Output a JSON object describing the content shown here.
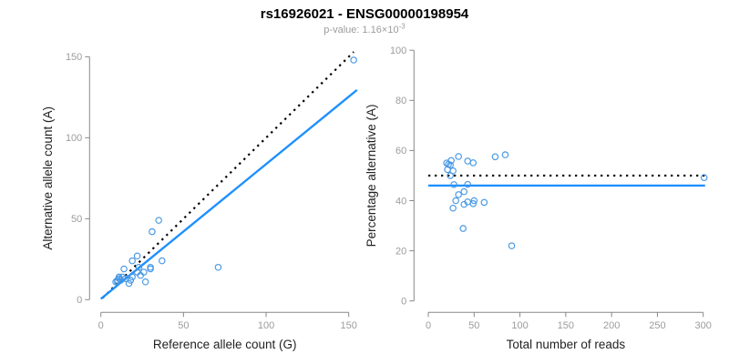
{
  "header": {
    "title": "rs16926021 - ENSG00000198954",
    "subtitle_main": "p-value: 1.16×10",
    "subtitle_exponent": "-3"
  },
  "colors": {
    "background": "#FFFFFF",
    "title": "#000000",
    "subtitle": "#9C9C9C",
    "axis_line": "#888888",
    "tick_label": "#9C9C9C",
    "axis_title": "#222222",
    "point_stroke": "#4697E4",
    "fit_line": "#1E90FF",
    "identity_line": "#000000"
  },
  "chart_data": [
    {
      "type": "scatter",
      "name": "ref-vs-alt-count",
      "title": "",
      "xlabel": "Reference allele count (G)",
      "ylabel": "Alternative allele count (A)",
      "xlim": [
        0,
        155
      ],
      "ylim": [
        0,
        155
      ],
      "xticks": [
        0,
        50,
        100,
        150
      ],
      "yticks": [
        0,
        50,
        100,
        150
      ],
      "grid": false,
      "legend": "none",
      "points": [
        [
          153,
          148
        ],
        [
          71,
          20
        ],
        [
          35,
          49
        ],
        [
          31,
          42
        ],
        [
          22,
          27
        ],
        [
          19,
          24
        ],
        [
          14,
          19
        ],
        [
          11,
          14
        ],
        [
          9,
          11
        ],
        [
          10,
          12
        ],
        [
          10,
          11
        ],
        [
          11,
          13
        ],
        [
          12,
          12
        ],
        [
          13,
          14
        ],
        [
          15,
          13
        ],
        [
          23,
          20
        ],
        [
          22,
          17
        ],
        [
          19,
          14
        ],
        [
          18,
          12
        ],
        [
          24,
          15
        ],
        [
          26,
          17
        ],
        [
          30,
          20
        ],
        [
          30,
          19
        ],
        [
          37,
          24
        ],
        [
          17,
          10
        ],
        [
          27,
          11
        ]
      ],
      "lines": [
        {
          "name": "identity-line",
          "style": "dotted",
          "color": "#000000",
          "width": 2.2,
          "from": [
            1,
            1
          ],
          "to": [
            153,
            153
          ]
        },
        {
          "name": "fit-line",
          "style": "solid",
          "color": "#1E90FF",
          "width": 2.4,
          "from": [
            0,
            0.5
          ],
          "to": [
            155,
            129.5
          ]
        }
      ]
    },
    {
      "type": "scatter",
      "name": "total-reads-vs-percentage",
      "title": "",
      "xlabel": "Total number of reads",
      "ylabel": "Percentage alternative (A)",
      "xlim": [
        0,
        305
      ],
      "ylim": [
        0,
        100
      ],
      "xticks": [
        0,
        50,
        100,
        150,
        200,
        250,
        300
      ],
      "yticks": [
        0,
        20,
        40,
        60,
        80,
        100
      ],
      "grid": false,
      "legend": "none",
      "points": [
        [
          301,
          49.2
        ],
        [
          91,
          22.0
        ],
        [
          84,
          58.3
        ],
        [
          73,
          57.5
        ],
        [
          49,
          55.1
        ],
        [
          43,
          55.8
        ],
        [
          33,
          57.6
        ],
        [
          25,
          56.0
        ],
        [
          20,
          55.0
        ],
        [
          22,
          54.5
        ],
        [
          21,
          52.4
        ],
        [
          24,
          54.2
        ],
        [
          24,
          50.0
        ],
        [
          27,
          51.9
        ],
        [
          28,
          46.4
        ],
        [
          43,
          46.5
        ],
        [
          39,
          43.6
        ],
        [
          33,
          42.4
        ],
        [
          30,
          40.0
        ],
        [
          39,
          38.5
        ],
        [
          43,
          39.5
        ],
        [
          50,
          40.0
        ],
        [
          49,
          38.8
        ],
        [
          61,
          39.3
        ],
        [
          27,
          37.0
        ],
        [
          38,
          28.9
        ]
      ],
      "lines": [
        {
          "name": "expected-50pct-line",
          "style": "dotted",
          "color": "#000000",
          "width": 2.2,
          "from": [
            0,
            50
          ],
          "to": [
            302,
            50
          ]
        },
        {
          "name": "fit-line",
          "style": "solid",
          "color": "#1E90FF",
          "width": 2.4,
          "from": [
            0,
            46
          ],
          "to": [
            302,
            46
          ]
        }
      ]
    }
  ]
}
